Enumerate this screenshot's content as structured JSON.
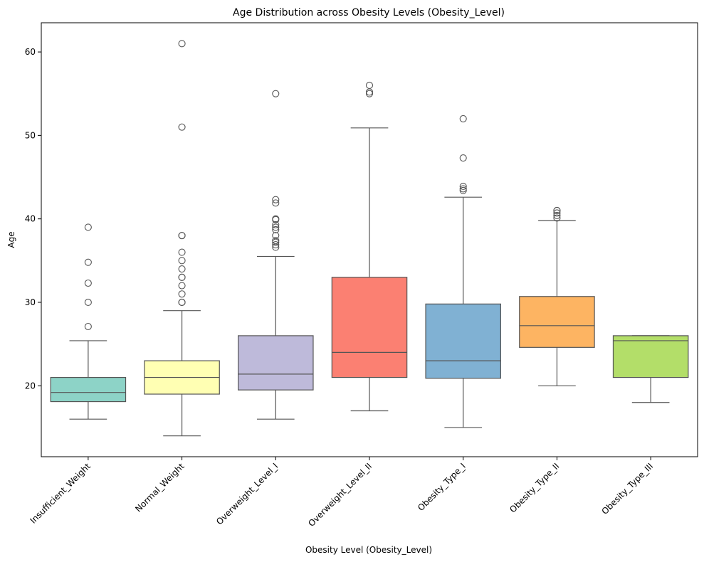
{
  "chart_data": {
    "type": "boxplot",
    "title": "Age Distribution across Obesity Levels (Obesity_Level)",
    "xlabel": "Obesity Level (Obesity_Level)",
    "ylabel": "Age",
    "ylim": [
      11.5,
      63.5
    ],
    "yticks": [
      20,
      30,
      40,
      50,
      60
    ],
    "grid": false,
    "categories": [
      "Insufficient_Weight",
      "Normal_Weight",
      "Overweight_Level_I",
      "Overweight_Level_II",
      "Obesity_Type_I",
      "Obesity_Type_II",
      "Obesity_Type_III"
    ],
    "colors": [
      "#8dd3c7",
      "#ffffb3",
      "#bebada",
      "#fb8072",
      "#80b1d3",
      "#fdb462",
      "#b3de69"
    ],
    "boxes": [
      {
        "whisker_low": 16,
        "q1": 18.1,
        "median": 19.2,
        "q3": 21,
        "whisker_high": 25.4,
        "outliers": [
          27.1,
          30,
          32.3,
          34.8,
          39
        ]
      },
      {
        "whisker_low": 14,
        "q1": 19,
        "median": 21,
        "q3": 23,
        "whisker_high": 29,
        "outliers": [
          30,
          30,
          31,
          32,
          33,
          33,
          34,
          35,
          36,
          38,
          38,
          51,
          61
        ]
      },
      {
        "whisker_low": 16,
        "q1": 19.5,
        "median": 21.4,
        "q3": 26,
        "whisker_high": 35.5,
        "outliers": [
          36.6,
          36.9,
          37.2,
          37.4,
          38,
          38.7,
          39,
          39.3,
          39.9,
          40,
          41.9,
          42.3,
          55
        ]
      },
      {
        "whisker_low": 17,
        "q1": 21,
        "median": 24,
        "q3": 33,
        "whisker_high": 50.9,
        "outliers": [
          55,
          55.2,
          56
        ]
      },
      {
        "whisker_low": 15,
        "q1": 20.9,
        "median": 23,
        "q3": 29.8,
        "whisker_high": 42.6,
        "outliers": [
          43.4,
          43.6,
          43.9,
          47.3,
          52
        ]
      },
      {
        "whisker_low": 20,
        "q1": 24.6,
        "median": 27.2,
        "q3": 30.7,
        "whisker_high": 39.8,
        "outliers": [
          40.1,
          40.4,
          40.7,
          41,
          41
        ]
      },
      {
        "whisker_low": 18,
        "q1": 21,
        "median": 25.4,
        "q3": 26,
        "whisker_high": 26,
        "outliers": []
      }
    ]
  }
}
